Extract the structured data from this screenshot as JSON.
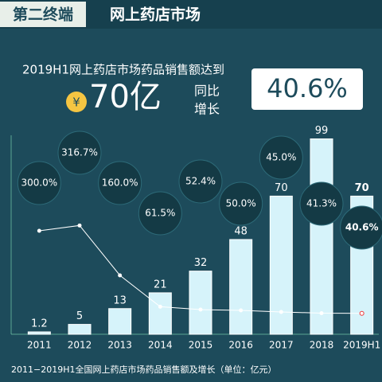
{
  "header": {
    "tag": "第二终端",
    "title": "网上药店市场"
  },
  "headline": {
    "line1": "2019H1网上药店市场药品销售额达到",
    "currency": "¥",
    "amount": "70亿",
    "yoy1": "同比",
    "yoy2": "增长",
    "growth": "40.6%"
  },
  "chart_data": {
    "type": "bar",
    "categories": [
      "2011",
      "2012",
      "2013",
      "2014",
      "2015",
      "2016",
      "2017",
      "2018",
      "2019H1"
    ],
    "values": [
      1.2,
      5,
      13,
      21,
      32,
      48,
      70,
      99,
      70
    ],
    "color": "#d6f3fa",
    "ylim": [
      0,
      100
    ],
    "series": [
      {
        "name": "增长",
        "axis": "y2",
        "color": "#ffffff",
        "values": [
          300.0,
          316.7,
          160.0,
          61.5,
          52.4,
          50.0,
          45.0,
          41.3,
          40.6
        ],
        "value_labels": [
          "300.0%",
          "316.7%",
          "160.0%",
          "61.5%",
          "52.4%",
          "50.0%",
          "45.0%",
          "41.3%",
          "40.6%"
        ]
      }
    ],
    "y2lim": [
      0,
      350
    ],
    "caption": "2011−2019H1全国网上药店市场药品销售额及增长（单位：亿元）"
  }
}
